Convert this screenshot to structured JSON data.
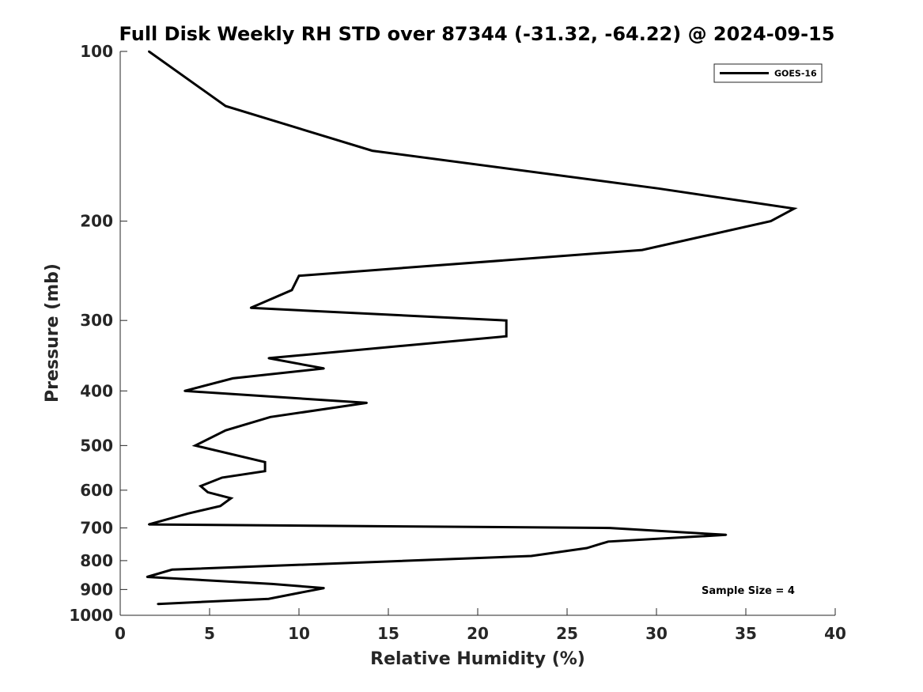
{
  "chart_data": {
    "type": "line",
    "title": "Full Disk Weekly RH STD over 87344 (-31.32, -64.22) @ 2024-09-15",
    "xlabel": "Relative Humidity (%)",
    "ylabel": "Pressure (mb)",
    "xlim": [
      0,
      40
    ],
    "ylim": [
      100,
      1000
    ],
    "yscale": "log",
    "y_reversed": true,
    "x_ticks": [
      0,
      5,
      10,
      15,
      20,
      25,
      30,
      35,
      40
    ],
    "y_ticks": [
      100,
      200,
      300,
      400,
      500,
      600,
      700,
      800,
      900,
      1000
    ],
    "grid": false,
    "legend": {
      "position": "top-right",
      "entries": [
        "GOES-16"
      ]
    },
    "annotation": "Sample Size = 4",
    "series": [
      {
        "name": "GOES-16",
        "color": "#000000",
        "points": [
          [
            1.6,
            100
          ],
          [
            5.9,
            125
          ],
          [
            14.1,
            150
          ],
          [
            30.1,
            175
          ],
          [
            37.7,
            190
          ],
          [
            36.4,
            200
          ],
          [
            29.2,
            225
          ],
          [
            10.0,
            250
          ],
          [
            9.6,
            265
          ],
          [
            7.3,
            285
          ],
          [
            21.6,
            300
          ],
          [
            21.6,
            320
          ],
          [
            8.3,
            350
          ],
          [
            11.4,
            365
          ],
          [
            6.3,
            380
          ],
          [
            3.6,
            400
          ],
          [
            13.8,
            420
          ],
          [
            8.4,
            445
          ],
          [
            5.9,
            470
          ],
          [
            4.2,
            500
          ],
          [
            8.1,
            535
          ],
          [
            8.1,
            555
          ],
          [
            5.7,
            570
          ],
          [
            4.5,
            590
          ],
          [
            4.9,
            605
          ],
          [
            6.2,
            620
          ],
          [
            5.6,
            640
          ],
          [
            3.8,
            660
          ],
          [
            1.6,
            690
          ],
          [
            27.4,
            700
          ],
          [
            33.9,
            720
          ],
          [
            27.3,
            740
          ],
          [
            26.1,
            760
          ],
          [
            23.0,
            785
          ],
          [
            2.9,
            830
          ],
          [
            1.5,
            855
          ],
          [
            8.5,
            880
          ],
          [
            11.4,
            895
          ],
          [
            8.3,
            935
          ],
          [
            2.1,
            955
          ]
        ]
      }
    ]
  }
}
